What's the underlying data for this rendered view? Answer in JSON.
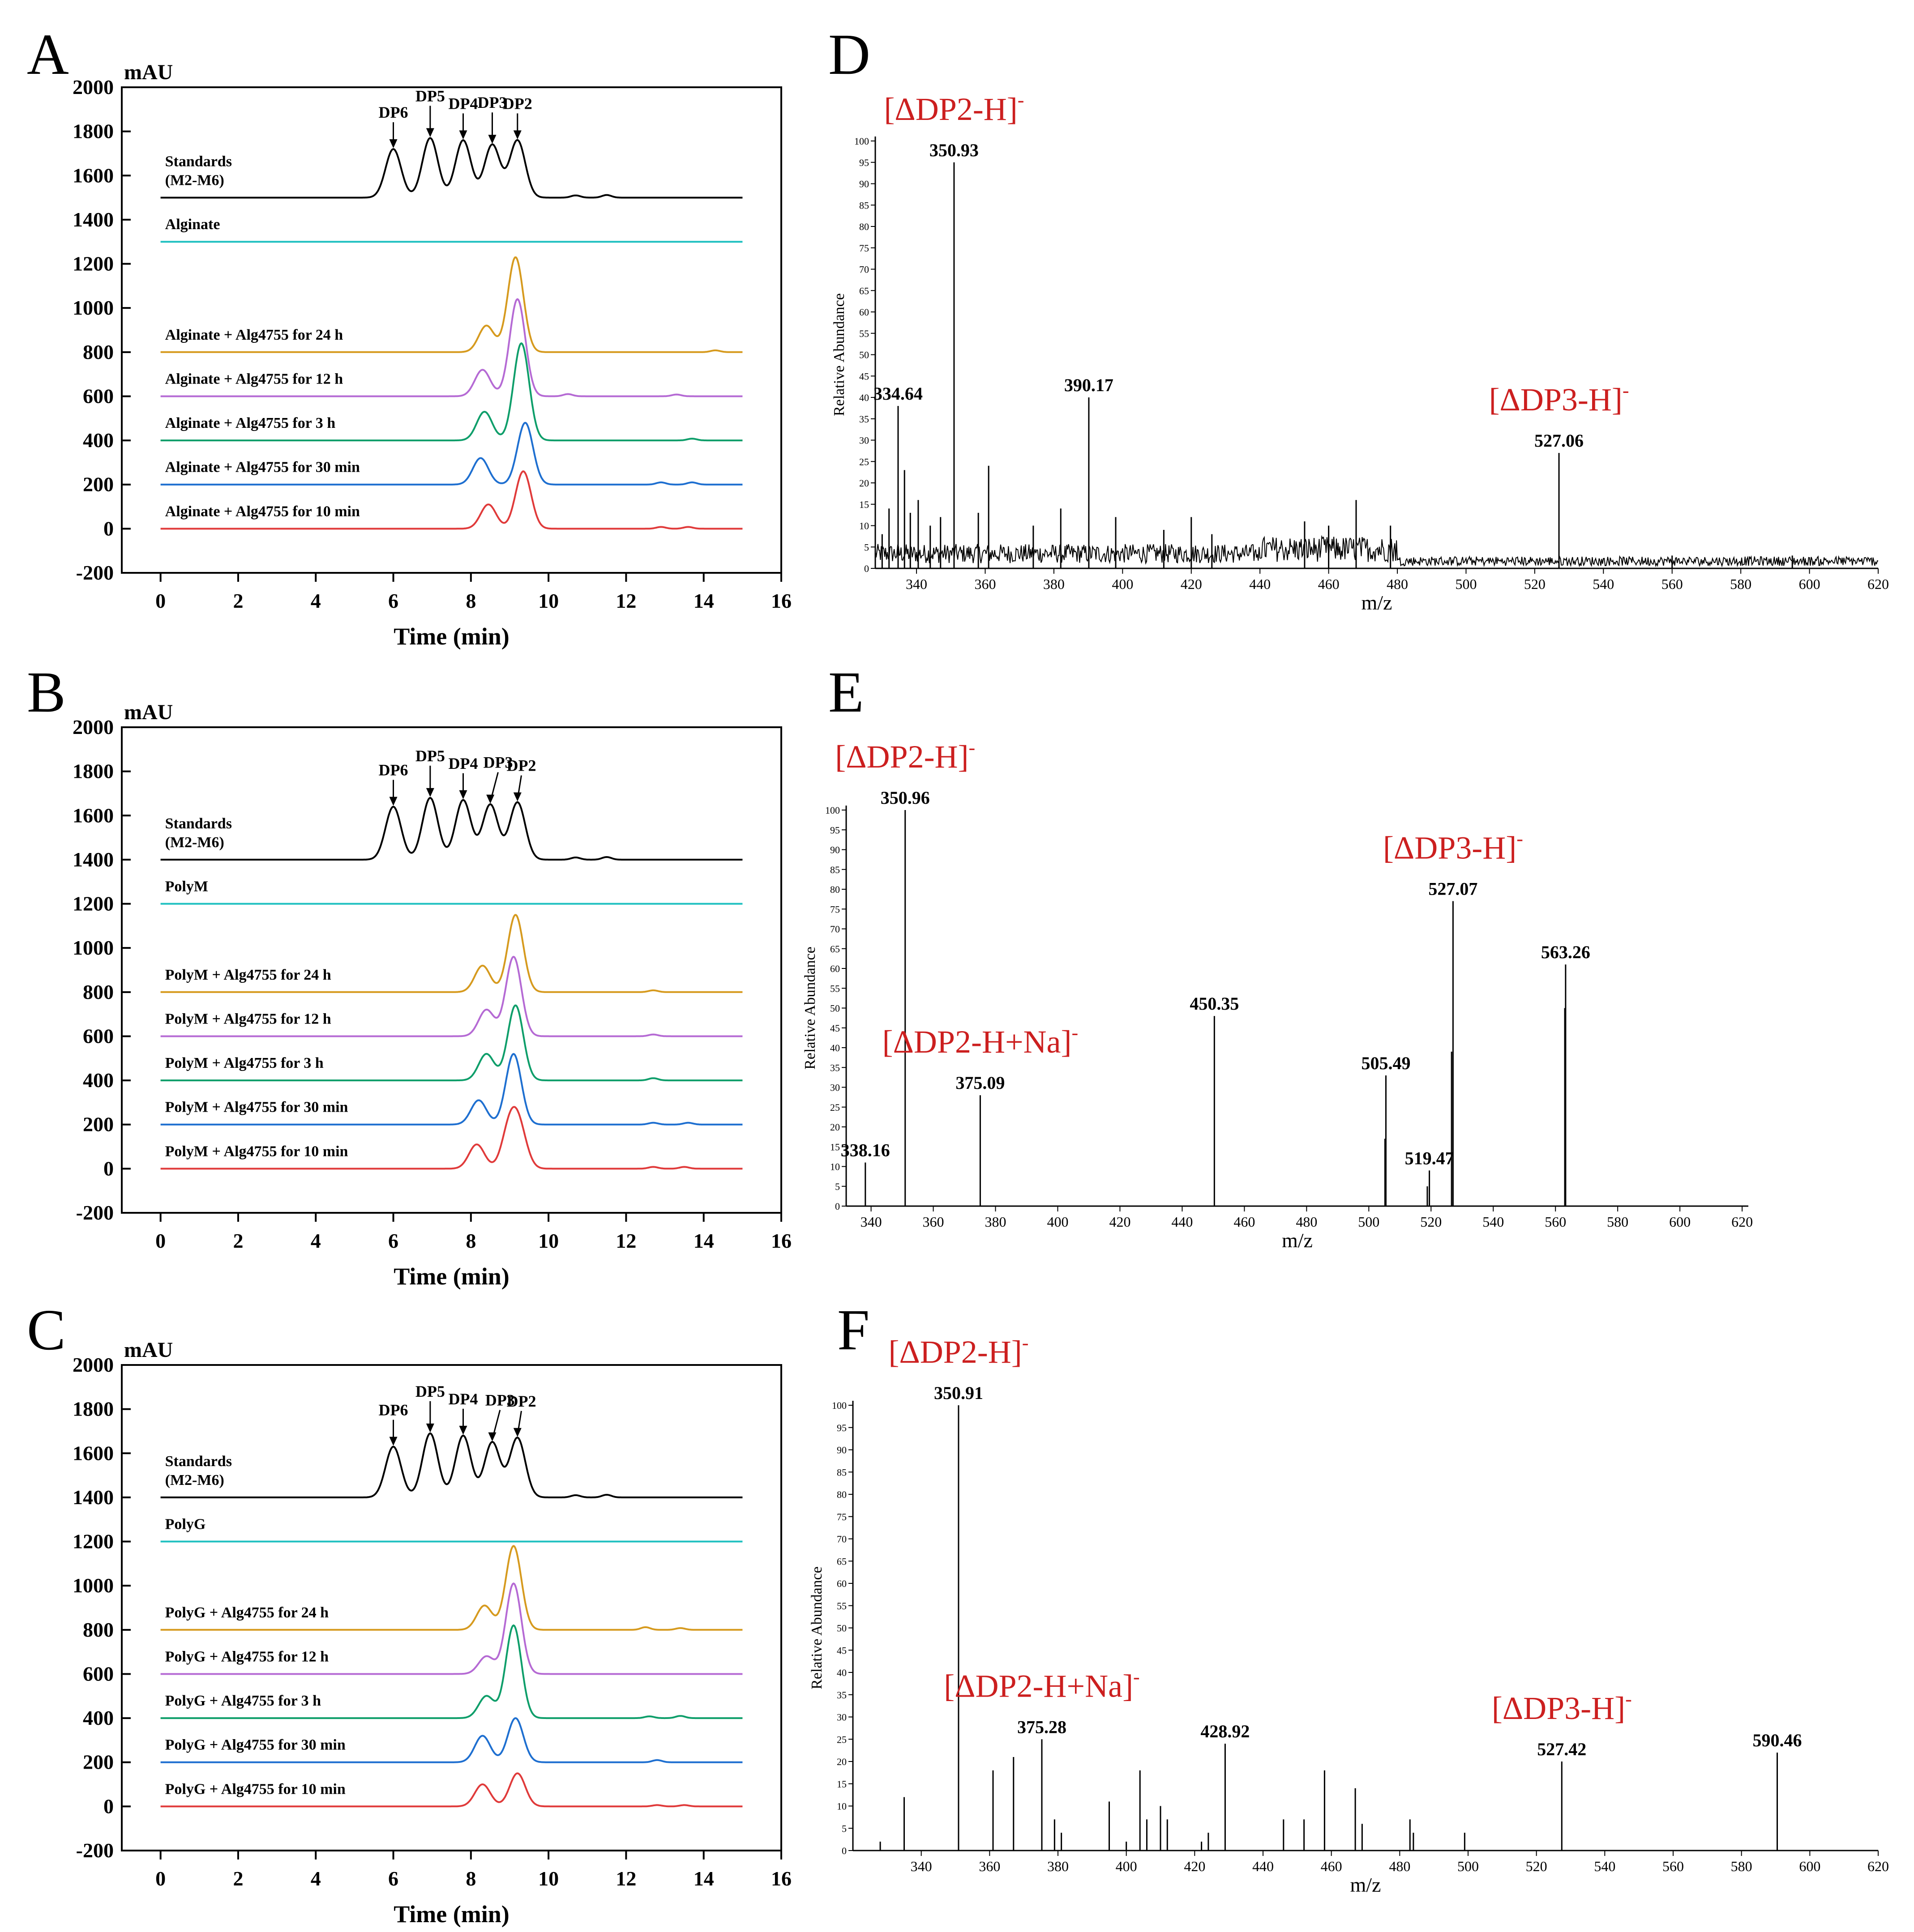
{
  "figure": {
    "hplc_time_ticks": [
      0,
      2,
      4,
      6,
      8,
      10,
      12,
      14,
      16
    ],
    "hplc_y_ticks": [
      2000,
      1800,
      1600,
      1400,
      1200,
      1000,
      800,
      600,
      400,
      200,
      0,
      -200
    ],
    "ms_x_ticks": [
      340,
      360,
      380,
      400,
      420,
      440,
      460,
      480,
      500,
      520,
      540,
      560,
      580,
      600,
      620
    ],
    "ms_y_ticks": [
      0,
      5,
      10,
      15,
      20,
      25,
      30,
      35,
      40,
      45,
      50,
      55,
      60,
      65,
      70,
      75,
      80,
      85,
      90,
      95,
      100
    ]
  },
  "colors": {
    "standards": "#000000",
    "substrate": "#1fc0c0",
    "h24": "#d69a1e",
    "h12": "#b56ad4",
    "h3": "#0e9e6a",
    "min30": "#1e6fd0",
    "min10": "#e03a3a",
    "annotation": "#cc1f1f"
  },
  "chart_data": [
    {
      "panel": "A",
      "type": "line",
      "title": "",
      "xlabel": "Time (min)",
      "ylabel": "mAU",
      "xlim": [
        -1,
        16
      ],
      "ylim": [
        -200,
        2000
      ],
      "dp_labels": [
        "DP6",
        "DP5",
        "DP4",
        "DP3",
        "DP2"
      ],
      "dp_times": [
        6.0,
        6.95,
        7.8,
        8.55,
        9.2
      ],
      "series": [
        {
          "key": "standards",
          "name_line1": "Standards",
          "name_line2": "(M2-M6)",
          "baseline": 1500,
          "peaks": [
            [
              6.0,
              220
            ],
            [
              6.95,
              270
            ],
            [
              7.8,
              260
            ],
            [
              8.55,
              240
            ],
            [
              9.2,
              260
            ]
          ],
          "small_peaks": [
            [
              10.7,
              10
            ],
            [
              11.5,
              12
            ]
          ]
        },
        {
          "key": "substrate",
          "name": "Alginate",
          "baseline": 1300,
          "peaks": [],
          "small_peaks": []
        },
        {
          "key": "h24",
          "name": "Alginate + Alg4755 for 24 h",
          "baseline": 800,
          "peaks": [
            [
              8.4,
              120
            ],
            [
              9.15,
              430
            ]
          ],
          "small_peaks": [
            [
              14.3,
              8
            ]
          ]
        },
        {
          "key": "h12",
          "name": "Alginate + Alg4755 for 12 h",
          "baseline": 600,
          "peaks": [
            [
              8.3,
              120
            ],
            [
              9.2,
              440
            ]
          ],
          "small_peaks": [
            [
              10.5,
              10
            ],
            [
              13.3,
              8
            ]
          ]
        },
        {
          "key": "h3",
          "name": "Alginate + Alg4755 for 3 h",
          "baseline": 400,
          "peaks": [
            [
              8.35,
              130
            ],
            [
              9.3,
              440
            ]
          ],
          "small_peaks": [
            [
              13.7,
              8
            ]
          ]
        },
        {
          "key": "min30",
          "name": "Alginate + Alg4755 for 30 min",
          "baseline": 200,
          "peaks": [
            [
              8.25,
              120
            ],
            [
              9.4,
              280
            ]
          ],
          "small_peaks": [
            [
              12.9,
              10
            ],
            [
              13.7,
              10
            ]
          ]
        },
        {
          "key": "min10",
          "name": "Alginate + Alg4755 for 10 min",
          "baseline": 0,
          "peaks": [
            [
              8.45,
              110
            ],
            [
              9.35,
              260
            ]
          ],
          "small_peaks": [
            [
              12.9,
              8
            ],
            [
              13.6,
              8
            ]
          ]
        }
      ]
    },
    {
      "panel": "B",
      "type": "line",
      "title": "",
      "xlabel": "Time (min)",
      "ylabel": "mAU",
      "xlim": [
        -1,
        16
      ],
      "ylim": [
        -200,
        2000
      ],
      "dp_labels": [
        "DP6",
        "DP5",
        "DP4",
        "DP3",
        "DP2"
      ],
      "dp_times": [
        6.0,
        6.95,
        7.8,
        8.7,
        9.3
      ],
      "series": [
        {
          "key": "standards",
          "name_line1": "Standards",
          "name_line2": "(M2-M6)",
          "baseline": 1400,
          "peaks": [
            [
              6.0,
              240
            ],
            [
              6.95,
              280
            ],
            [
              7.8,
              270
            ],
            [
              8.5,
              250
            ],
            [
              9.2,
              260
            ]
          ],
          "small_peaks": [
            [
              10.7,
              10
            ],
            [
              11.5,
              12
            ]
          ]
        },
        {
          "key": "substrate",
          "name": "PolyM",
          "baseline": 1200,
          "peaks": [],
          "small_peaks": []
        },
        {
          "key": "h24",
          "name": "PolyM + Alg4755 for 24 h",
          "baseline": 800,
          "peaks": [
            [
              8.3,
              120
            ],
            [
              9.15,
              350
            ]
          ],
          "small_peaks": [
            [
              12.7,
              8
            ]
          ]
        },
        {
          "key": "h12",
          "name": "PolyM + Alg4755 for 12 h",
          "baseline": 600,
          "peaks": [
            [
              8.4,
              120
            ],
            [
              9.1,
              360
            ]
          ],
          "small_peaks": [
            [
              12.7,
              8
            ]
          ]
        },
        {
          "key": "h3",
          "name": "PolyM + Alg4755 for 3 h",
          "baseline": 400,
          "peaks": [
            [
              8.4,
              120
            ],
            [
              9.15,
              340
            ]
          ],
          "small_peaks": [
            [
              12.7,
              10
            ]
          ]
        },
        {
          "key": "min30",
          "name": "PolyM + Alg4755 for 30 min",
          "baseline": 200,
          "peaks": [
            [
              8.2,
              110
            ],
            [
              9.1,
              320
            ]
          ],
          "small_peaks": [
            [
              12.7,
              8
            ],
            [
              13.6,
              8
            ]
          ]
        },
        {
          "key": "min10",
          "name": "PolyM + Alg4755 for 10 min",
          "baseline": 0,
          "peaks": [
            [
              8.15,
              110
            ],
            [
              9.0,
              180
            ],
            [
              9.25,
              160
            ]
          ],
          "small_peaks": [
            [
              12.7,
              8
            ],
            [
              13.5,
              8
            ]
          ]
        }
      ]
    },
    {
      "panel": "C",
      "type": "line",
      "title": "",
      "xlabel": "Time (min)",
      "ylabel": "mAU",
      "xlim": [
        -1,
        16
      ],
      "ylim": [
        -200,
        2000
      ],
      "dp_labels": [
        "DP6",
        "DP5",
        "DP4",
        "DP3",
        "DP2"
      ],
      "dp_times": [
        6.0,
        6.95,
        7.8,
        8.75,
        9.3
      ],
      "series": [
        {
          "key": "standards",
          "name_line1": "Standards",
          "name_line2": "(M2-M6)",
          "baseline": 1400,
          "peaks": [
            [
              6.0,
              230
            ],
            [
              6.95,
              290
            ],
            [
              7.8,
              280
            ],
            [
              8.55,
              250
            ],
            [
              9.2,
              270
            ]
          ],
          "small_peaks": [
            [
              10.7,
              10
            ],
            [
              11.5,
              12
            ]
          ]
        },
        {
          "key": "substrate",
          "name": "PolyG",
          "baseline": 1200,
          "peaks": [],
          "small_peaks": []
        },
        {
          "key": "h24",
          "name": "PolyG + Alg4755 for 24 h",
          "baseline": 800,
          "peaks": [
            [
              8.35,
              110
            ],
            [
              9.1,
              380
            ]
          ],
          "small_peaks": [
            [
              12.5,
              12
            ],
            [
              13.4,
              8
            ]
          ]
        },
        {
          "key": "h12",
          "name": "PolyG + Alg4755 for 12 h",
          "baseline": 600,
          "peaks": [
            [
              8.4,
              80
            ],
            [
              9.1,
              410
            ]
          ],
          "small_peaks": []
        },
        {
          "key": "h3",
          "name": "PolyG + Alg4755 for 3 h",
          "baseline": 400,
          "peaks": [
            [
              8.4,
              100
            ],
            [
              9.1,
              420
            ]
          ],
          "small_peaks": [
            [
              12.6,
              8
            ],
            [
              13.4,
              10
            ]
          ]
        },
        {
          "key": "min30",
          "name": "PolyG + Alg4755 for 30 min",
          "baseline": 200,
          "peaks": [
            [
              8.3,
              120
            ],
            [
              9.15,
              200
            ]
          ],
          "small_peaks": [
            [
              12.8,
              10
            ]
          ]
        },
        {
          "key": "min10",
          "name": "PolyG + Alg4755 for 10 min",
          "baseline": 0,
          "peaks": [
            [
              8.3,
              100
            ],
            [
              9.2,
              150
            ]
          ],
          "small_peaks": [
            [
              12.8,
              6
            ],
            [
              13.5,
              6
            ]
          ]
        }
      ]
    },
    {
      "panel": "D",
      "type": "bar",
      "title": "",
      "xlabel": "m/z",
      "ylabel": "Relative Abundance",
      "xlim": [
        328,
        620
      ],
      "ylim": [
        0,
        100
      ],
      "noise": true,
      "peaks": [
        {
          "mz": 330,
          "ab": 8
        },
        {
          "mz": 332,
          "ab": 14
        },
        {
          "mz": 334.64,
          "ab": 38,
          "label": "334.64"
        },
        {
          "mz": 336.5,
          "ab": 23
        },
        {
          "mz": 338.2,
          "ab": 13
        },
        {
          "mz": 340.5,
          "ab": 16
        },
        {
          "mz": 344,
          "ab": 10
        },
        {
          "mz": 347,
          "ab": 12
        },
        {
          "mz": 350.93,
          "ab": 95,
          "label": "350.93"
        },
        {
          "mz": 358,
          "ab": 13
        },
        {
          "mz": 361,
          "ab": 24
        },
        {
          "mz": 374,
          "ab": 10
        },
        {
          "mz": 382,
          "ab": 14
        },
        {
          "mz": 390.17,
          "ab": 40,
          "label": "390.17"
        },
        {
          "mz": 398,
          "ab": 12
        },
        {
          "mz": 412,
          "ab": 9
        },
        {
          "mz": 420,
          "ab": 12
        },
        {
          "mz": 426,
          "ab": 8
        },
        {
          "mz": 453,
          "ab": 11
        },
        {
          "mz": 460,
          "ab": 10
        },
        {
          "mz": 468,
          "ab": 16
        },
        {
          "mz": 478,
          "ab": 10
        },
        {
          "mz": 527.06,
          "ab": 27,
          "label": "527.06"
        },
        {
          "mz": 560,
          "ab": 3
        },
        {
          "mz": 595,
          "ab": 3
        }
      ],
      "annotations": [
        {
          "text": "[ΔDP2-H]",
          "sup": "-",
          "mz": 350.93
        },
        {
          "text": "[ΔDP3-H]",
          "sup": "-",
          "mz": 527.06
        }
      ]
    },
    {
      "panel": "E",
      "type": "bar",
      "title": "",
      "xlabel": "m/z",
      "ylabel": "Relative Abundance",
      "xlim": [
        332,
        622
      ],
      "ylim": [
        0,
        100
      ],
      "noise": false,
      "peaks": [
        {
          "mz": 338.16,
          "ab": 11,
          "label": "338.16"
        },
        {
          "mz": 350.96,
          "ab": 100,
          "label": "350.96"
        },
        {
          "mz": 375.09,
          "ab": 28,
          "label": "375.09"
        },
        {
          "mz": 450.35,
          "ab": 48,
          "label": "450.35"
        },
        {
          "mz": 505.49,
          "ab": 33,
          "label": "505.49"
        },
        {
          "mz": 505.2,
          "ab": 17
        },
        {
          "mz": 519.47,
          "ab": 9,
          "label": "519.47"
        },
        {
          "mz": 518.8,
          "ab": 5
        },
        {
          "mz": 527.07,
          "ab": 77,
          "label": "527.07"
        },
        {
          "mz": 526.6,
          "ab": 39
        },
        {
          "mz": 563.26,
          "ab": 61,
          "label": "563.26"
        },
        {
          "mz": 563.0,
          "ab": 50
        }
      ],
      "annotations": [
        {
          "text": "[ΔDP2-H]",
          "sup": "-",
          "mz": 350.96
        },
        {
          "text": "[ΔDP2-H+Na]",
          "sup": "-",
          "mz": 375.09
        },
        {
          "text": "[ΔDP3-H]",
          "sup": "-",
          "mz": 527.07
        }
      ]
    },
    {
      "panel": "F",
      "type": "bar",
      "title": "",
      "xlabel": "m/z",
      "ylabel": "Relative Abundance",
      "xlim": [
        320,
        620
      ],
      "ylim": [
        0,
        100
      ],
      "noise": false,
      "peaks": [
        {
          "mz": 328,
          "ab": 2
        },
        {
          "mz": 335,
          "ab": 12
        },
        {
          "mz": 350.91,
          "ab": 100,
          "label": "350.91"
        },
        {
          "mz": 361,
          "ab": 18
        },
        {
          "mz": 367,
          "ab": 21
        },
        {
          "mz": 375.28,
          "ab": 25,
          "label": "375.28"
        },
        {
          "mz": 379,
          "ab": 7
        },
        {
          "mz": 381,
          "ab": 4
        },
        {
          "mz": 395,
          "ab": 11
        },
        {
          "mz": 400,
          "ab": 2
        },
        {
          "mz": 404,
          "ab": 18
        },
        {
          "mz": 406,
          "ab": 7
        },
        {
          "mz": 410,
          "ab": 10
        },
        {
          "mz": 412,
          "ab": 7
        },
        {
          "mz": 422,
          "ab": 2
        },
        {
          "mz": 424,
          "ab": 4
        },
        {
          "mz": 428.92,
          "ab": 24,
          "label": "428.92"
        },
        {
          "mz": 446,
          "ab": 7
        },
        {
          "mz": 452,
          "ab": 7
        },
        {
          "mz": 458,
          "ab": 18
        },
        {
          "mz": 467,
          "ab": 14
        },
        {
          "mz": 469,
          "ab": 6
        },
        {
          "mz": 483,
          "ab": 7
        },
        {
          "mz": 484,
          "ab": 4
        },
        {
          "mz": 499,
          "ab": 4
        },
        {
          "mz": 527.42,
          "ab": 20,
          "label": "527.42"
        },
        {
          "mz": 590.46,
          "ab": 22,
          "label": "590.46"
        }
      ],
      "annotations": [
        {
          "text": "[ΔDP2-H]",
          "sup": "-",
          "mz": 350.91
        },
        {
          "text": "[ΔDP2-H+Na]",
          "sup": "-",
          "mz": 375.28
        },
        {
          "text": "[ΔDP3-H]",
          "sup": "-",
          "mz": 527.42
        }
      ]
    }
  ]
}
